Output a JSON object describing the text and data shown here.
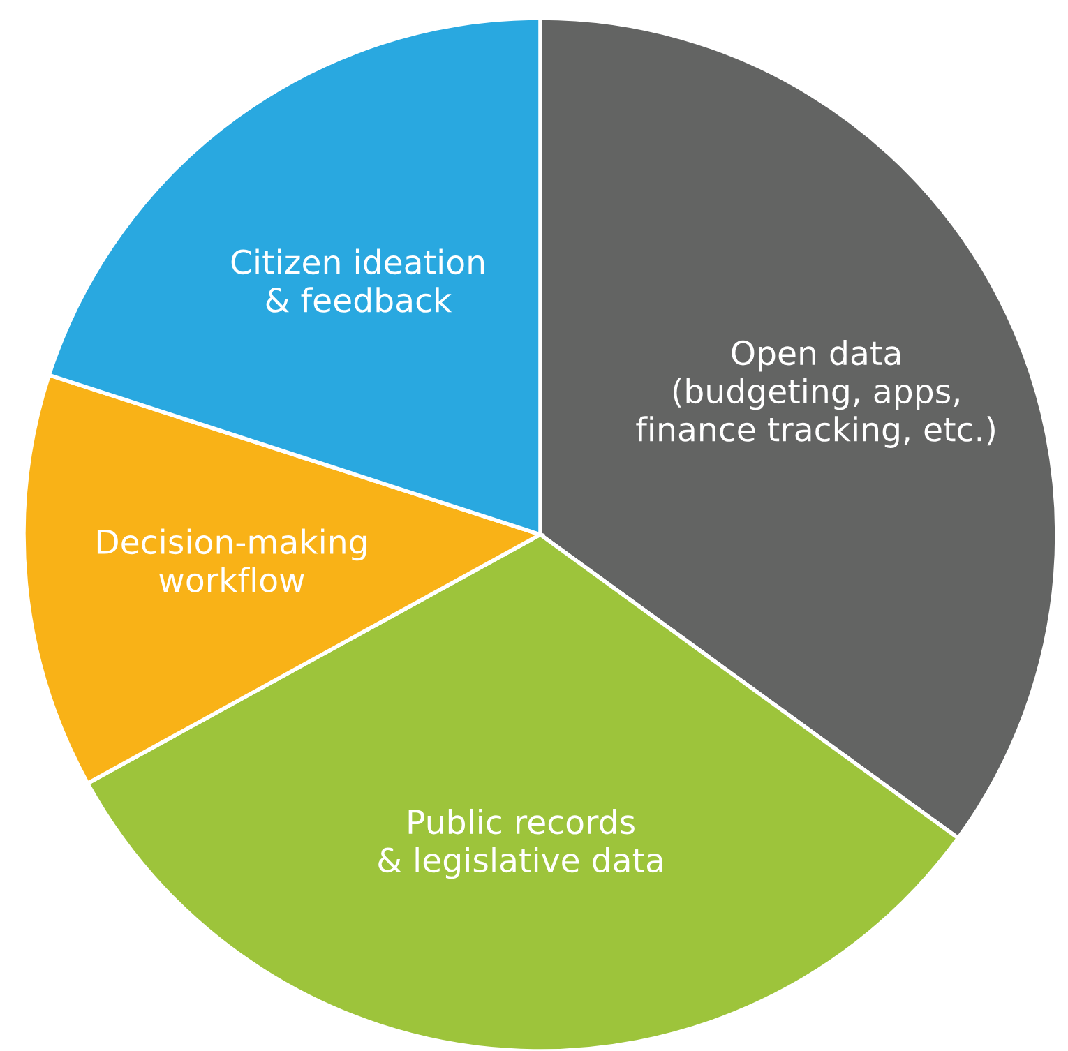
{
  "chart_data": {
    "type": "pie",
    "categories": [
      "Open data\n(budgeting, apps,\nfinance tracking, etc.)",
      "Public records\n& legislative data",
      "Decision-making\nworkflow",
      "Citizen ideation\n& feedback"
    ],
    "values": [
      35,
      32,
      13,
      20
    ],
    "colors": [
      "#636463",
      "#9dc43b",
      "#f9b217",
      "#29a8e0"
    ]
  }
}
